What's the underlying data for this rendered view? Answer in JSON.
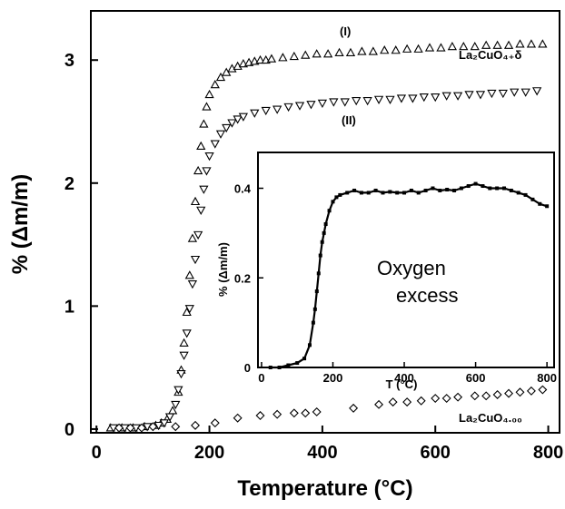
{
  "chart_data": [
    {
      "type": "scatter",
      "title": "",
      "xlabel": "Temperature (°C)",
      "ylabel": "% (Δm/m)",
      "xlim": [
        -10,
        820
      ],
      "ylim": [
        -0.03,
        3.4
      ],
      "xticks": [
        0,
        200,
        400,
        600,
        800
      ],
      "yticks": [
        0,
        1,
        2,
        3
      ],
      "grid": false,
      "series": [
        {
          "name": "La₂CuO₄₊δ",
          "marker": "triangle-up",
          "annotation": "(I)",
          "x": [
            25,
            45,
            65,
            85,
            105,
            115,
            125,
            135,
            145,
            150,
            155,
            160,
            165,
            170,
            175,
            180,
            185,
            190,
            195,
            200,
            210,
            220,
            230,
            240,
            250,
            260,
            270,
            280,
            290,
            300,
            310,
            330,
            350,
            370,
            390,
            410,
            430,
            450,
            470,
            490,
            510,
            530,
            550,
            570,
            590,
            610,
            630,
            650,
            670,
            690,
            710,
            730,
            750,
            770,
            790
          ],
          "y": [
            0.01,
            0.01,
            0.01,
            0.02,
            0.03,
            0.05,
            0.08,
            0.15,
            0.3,
            0.48,
            0.7,
            0.95,
            1.25,
            1.55,
            1.85,
            2.1,
            2.3,
            2.48,
            2.62,
            2.72,
            2.8,
            2.86,
            2.9,
            2.93,
            2.95,
            2.97,
            2.98,
            2.99,
            3.0,
            3.0,
            3.01,
            3.02,
            3.03,
            3.04,
            3.05,
            3.05,
            3.06,
            3.06,
            3.07,
            3.07,
            3.08,
            3.08,
            3.09,
            3.09,
            3.1,
            3.1,
            3.11,
            3.11,
            3.11,
            3.12,
            3.12,
            3.12,
            3.13,
            3.13,
            3.13
          ]
        },
        {
          "name": "",
          "marker": "triangle-down",
          "annotation": "(II)",
          "x": [
            30,
            50,
            70,
            90,
            110,
            120,
            130,
            140,
            145,
            150,
            155,
            160,
            165,
            170,
            175,
            180,
            185,
            190,
            195,
            200,
            210,
            220,
            230,
            240,
            250,
            260,
            280,
            300,
            320,
            340,
            360,
            380,
            400,
            420,
            440,
            460,
            480,
            500,
            520,
            540,
            560,
            580,
            600,
            620,
            640,
            660,
            680,
            700,
            720,
            740,
            760,
            780
          ],
          "y": [
            0.01,
            0.01,
            0.01,
            0.02,
            0.03,
            0.05,
            0.1,
            0.2,
            0.32,
            0.45,
            0.6,
            0.78,
            0.98,
            1.18,
            1.38,
            1.58,
            1.78,
            1.95,
            2.1,
            2.22,
            2.32,
            2.4,
            2.45,
            2.49,
            2.52,
            2.54,
            2.57,
            2.59,
            2.6,
            2.62,
            2.63,
            2.64,
            2.65,
            2.66,
            2.66,
            2.67,
            2.67,
            2.68,
            2.68,
            2.69,
            2.69,
            2.7,
            2.7,
            2.71,
            2.71,
            2.72,
            2.72,
            2.73,
            2.73,
            2.74,
            2.74,
            2.75
          ]
        },
        {
          "name": "La₂CuO₄.₀₀",
          "marker": "diamond",
          "x": [
            40,
            60,
            80,
            100,
            140,
            175,
            210,
            250,
            290,
            320,
            350,
            370,
            390,
            455,
            500,
            525,
            550,
            575,
            600,
            620,
            640,
            670,
            690,
            710,
            730,
            750,
            770,
            790
          ],
          "y": [
            0.01,
            0.01,
            0.01,
            0.02,
            0.02,
            0.03,
            0.05,
            0.09,
            0.11,
            0.12,
            0.13,
            0.13,
            0.14,
            0.17,
            0.2,
            0.22,
            0.22,
            0.23,
            0.25,
            0.25,
            0.26,
            0.27,
            0.27,
            0.28,
            0.29,
            0.3,
            0.31,
            0.32
          ]
        }
      ],
      "inset": {
        "type": "line",
        "xlabel": "T (°C)",
        "ylabel": "% (Δm/m)",
        "xlim": [
          -10,
          820
        ],
        "ylim": [
          0,
          0.48
        ],
        "xticks": [
          0,
          200,
          400,
          600,
          800
        ],
        "yticks": [
          0,
          0.2,
          0.4
        ],
        "ytick_labels": [
          "0",
          "0.2",
          "0.4"
        ],
        "annotation": "Oxygen excess",
        "x": [
          25,
          50,
          75,
          100,
          120,
          135,
          145,
          150,
          155,
          160,
          165,
          170,
          175,
          180,
          190,
          200,
          210,
          220,
          240,
          260,
          280,
          300,
          320,
          340,
          360,
          380,
          400,
          420,
          440,
          460,
          480,
          500,
          520,
          540,
          560,
          580,
          600,
          620,
          640,
          660,
          680,
          700,
          720,
          740,
          760,
          780,
          800
        ],
        "y": [
          0.0,
          0.0,
          0.005,
          0.01,
          0.02,
          0.05,
          0.1,
          0.13,
          0.17,
          0.21,
          0.25,
          0.28,
          0.3,
          0.32,
          0.35,
          0.37,
          0.38,
          0.385,
          0.39,
          0.395,
          0.39,
          0.39,
          0.395,
          0.39,
          0.392,
          0.39,
          0.39,
          0.395,
          0.39,
          0.395,
          0.4,
          0.395,
          0.397,
          0.395,
          0.4,
          0.405,
          0.41,
          0.405,
          0.4,
          0.4,
          0.4,
          0.395,
          0.39,
          0.385,
          0.375,
          0.365,
          0.36
        ]
      }
    }
  ]
}
